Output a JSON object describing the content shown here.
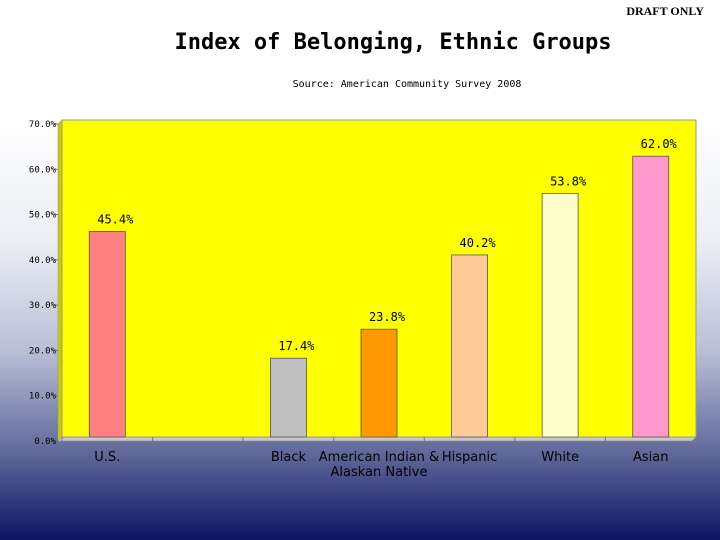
{
  "header": {
    "draft_label": "DRAFT ONLY"
  },
  "chart_data": {
    "type": "bar",
    "title": "Index of Belonging, Ethnic Groups",
    "subtitle": "Source: American Community Survey 2008",
    "categories": [
      "U.S.",
      "",
      "Black",
      "American Indian & Alaskan Native",
      "Hispanic",
      "White",
      "Asian"
    ],
    "category_lines": [
      [
        "U.S."
      ],
      [],
      [
        "Black"
      ],
      [
        "American Indian &",
        "Alaskan Native"
      ],
      [
        "Hispanic"
      ],
      [
        "White"
      ],
      [
        "Asian"
      ]
    ],
    "values": [
      45.4,
      null,
      17.4,
      23.8,
      40.2,
      53.8,
      62.0
    ],
    "data_labels": [
      "45.4%",
      "",
      "17.4%",
      "23.8%",
      "40.2%",
      "53.8%",
      "62.0%"
    ],
    "bar_colors": [
      "#ff8080",
      null,
      "#c0c0c0",
      "#ff9900",
      "#ffcc99",
      "#ffffcc",
      "#ff99cc"
    ],
    "ylim": [
      0,
      70
    ],
    "yticks": [
      0,
      10,
      20,
      30,
      40,
      50,
      60,
      70
    ],
    "ytick_labels": [
      "0.0%",
      "10.0%",
      "20.0%",
      "30.0%",
      "40.0%",
      "50.0%",
      "60.0%",
      "70.0%"
    ],
    "xlabel": "",
    "ylabel": "",
    "grid": false,
    "legend": "none",
    "plot_background": "#ffff00"
  }
}
